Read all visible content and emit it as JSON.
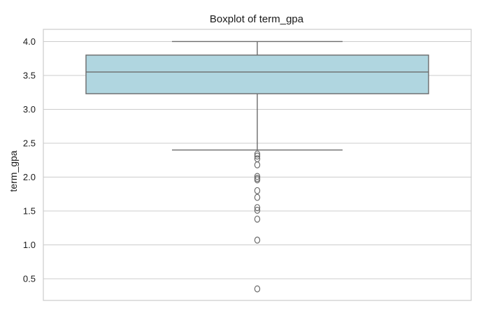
{
  "chart_data": {
    "type": "boxplot",
    "title": "Boxplot of term_gpa",
    "xlabel": "",
    "ylabel": "term_gpa",
    "ylim": [
      0.18,
      4.18
    ],
    "yticks": [
      0.5,
      1.0,
      1.5,
      2.0,
      2.5,
      3.0,
      3.5,
      4.0
    ],
    "ytick_labels": [
      "0.5",
      "1.0",
      "1.5",
      "2.0",
      "2.5",
      "3.0",
      "3.5",
      "4.0"
    ],
    "grid": true,
    "box": {
      "whisker_low": 2.4,
      "q1": 3.23,
      "median": 3.55,
      "q3": 3.8,
      "whisker_high": 4.0
    },
    "outliers": [
      2.34,
      2.31,
      2.27,
      2.18,
      2.01,
      1.98,
      1.96,
      1.8,
      1.7,
      1.55,
      1.51,
      1.38,
      1.07,
      0.35
    ],
    "colors": {
      "box_fill": "#b0d6e0",
      "line": "#6b6b6b",
      "grid": "#cccccc",
      "frame": "#cccccc"
    }
  }
}
